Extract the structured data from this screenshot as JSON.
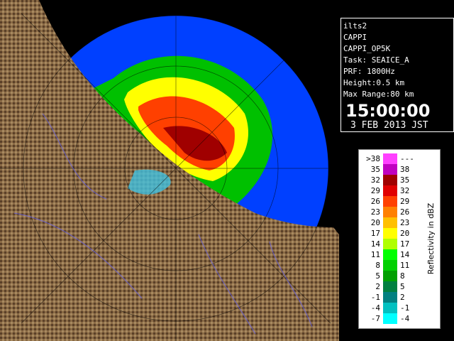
{
  "info": {
    "lines": [
      "ilts2",
      "CAPPI",
      "CAPPI_OP5K",
      "Task: SEAICE_A",
      "PRF: 1800Hz",
      "Height:0.5 km",
      "Max Range:80 km"
    ],
    "time": "15:00:00",
    "date": "3 FEB 2013 JST"
  },
  "legend": {
    "title": "Reflectivity in dBZ",
    "rows": [
      {
        "low": ">38",
        "high": "---",
        "color": "#ff40ff"
      },
      {
        "low": "35",
        "high": "38",
        "color": "#c000c0"
      },
      {
        "low": "32",
        "high": "35",
        "color": "#a00000"
      },
      {
        "low": "29",
        "high": "32",
        "color": "#e00000"
      },
      {
        "low": "26",
        "high": "29",
        "color": "#ff4000"
      },
      {
        "low": "23",
        "high": "26",
        "color": "#ff8000"
      },
      {
        "low": "20",
        "high": "23",
        "color": "#ffc000"
      },
      {
        "low": "17",
        "high": "20",
        "color": "#ffff00"
      },
      {
        "low": "14",
        "high": "17",
        "color": "#b0ff00"
      },
      {
        "low": "11",
        "high": "14",
        "color": "#00ff00"
      },
      {
        "low": "8",
        "high": "11",
        "color": "#00d000"
      },
      {
        "low": "5",
        "high": "8",
        "color": "#00a000"
      },
      {
        "low": "2",
        "high": "5",
        "color": "#008040"
      },
      {
        "low": "-1",
        "high": "2",
        "color": "#008080"
      },
      {
        "low": "-4",
        "high": "-1",
        "color": "#00c0c0"
      },
      {
        "low": "-7",
        "high": "-4",
        "color": "#00ffff"
      }
    ]
  }
}
